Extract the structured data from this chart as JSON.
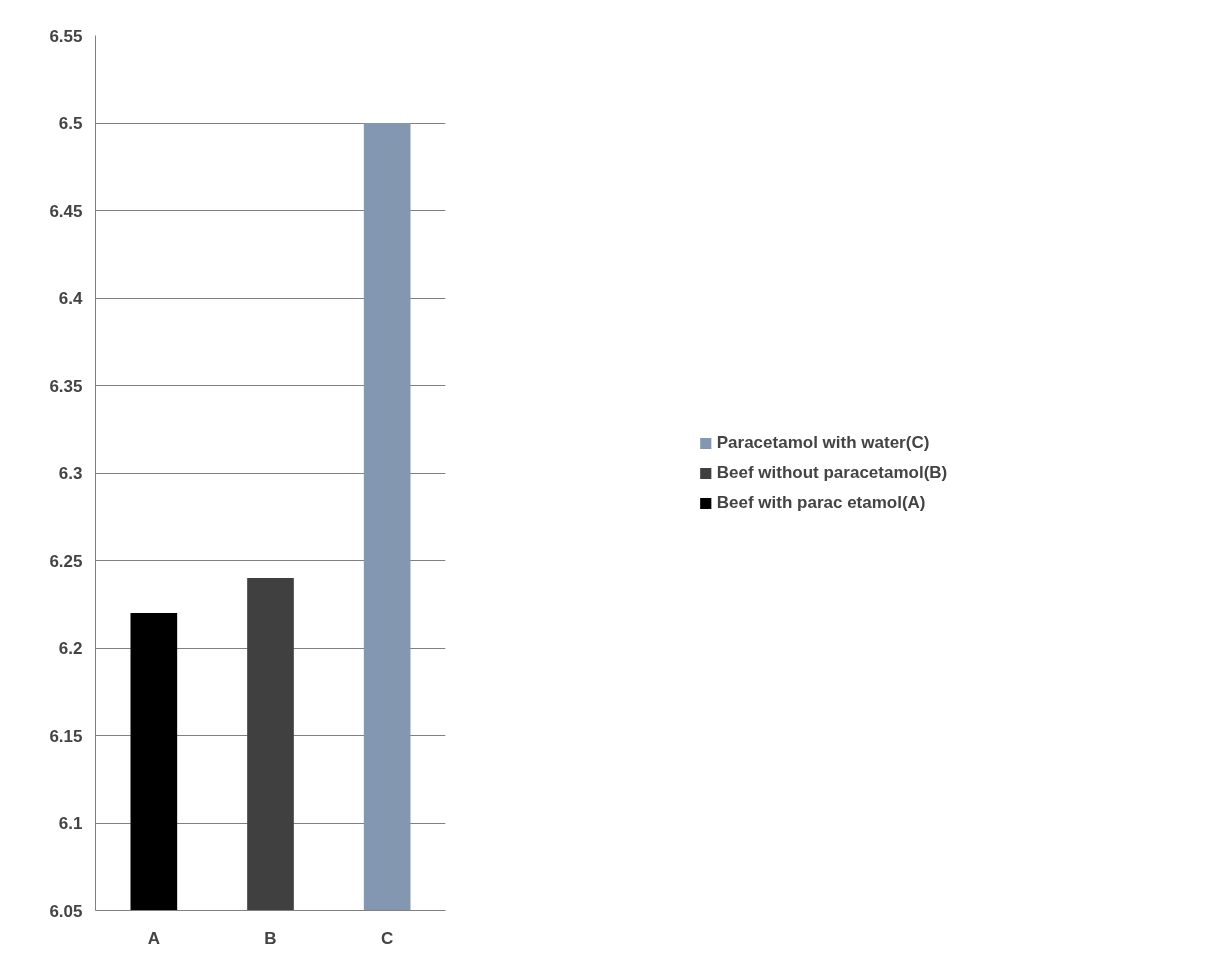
{
  "chart_data": {
    "type": "bar",
    "categories": [
      "A",
      "B",
      "C"
    ],
    "series": [
      {
        "name": "Beef with parac etamol(A)",
        "color": "#000000",
        "values": [
          6.22,
          null,
          null
        ]
      },
      {
        "name": "Beef without paracetamol(B)",
        "color": "#404040",
        "values": [
          null,
          6.24,
          null
        ]
      },
      {
        "name": "Paracetamol with water(C)",
        "color": "#8497b0",
        "values": [
          null,
          null,
          6.5
        ]
      }
    ],
    "ylim": [
      6.05,
      6.55
    ],
    "yticks": [
      6.05,
      6.1,
      6.15,
      6.2,
      6.25,
      6.3,
      6.35,
      6.4,
      6.45,
      6.5,
      6.55
    ],
    "grid": "y",
    "legend": "right"
  }
}
